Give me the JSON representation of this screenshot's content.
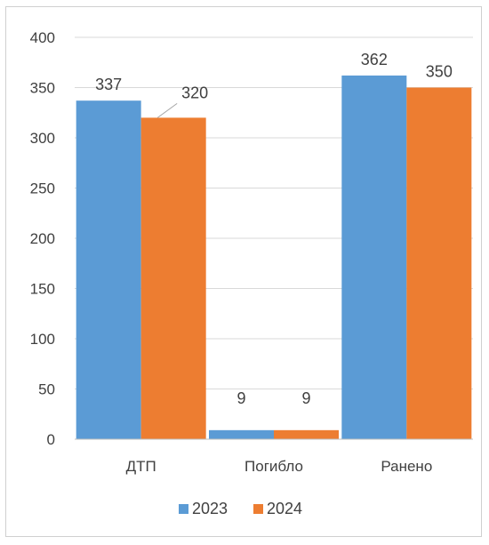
{
  "chart_data": {
    "type": "bar",
    "categories": [
      "ДТП",
      "Погибло",
      "Ранено"
    ],
    "series": [
      {
        "name": "2023",
        "values": [
          337,
          9,
          362
        ],
        "color": "#5B9BD5"
      },
      {
        "name": "2024",
        "values": [
          320,
          9,
          350
        ],
        "color": "#ED7D31"
      }
    ],
    "title": "",
    "xlabel": "",
    "ylabel": "",
    "ylim": [
      0,
      400
    ],
    "y_ticks": [
      0,
      50,
      100,
      150,
      200,
      250,
      300,
      350,
      400
    ],
    "grid": true,
    "gridline_color": "#d9d9d9",
    "axis_color": "#bfbfbf",
    "leader_line_color": "#a6a6a6",
    "legend_position": "bottom"
  }
}
